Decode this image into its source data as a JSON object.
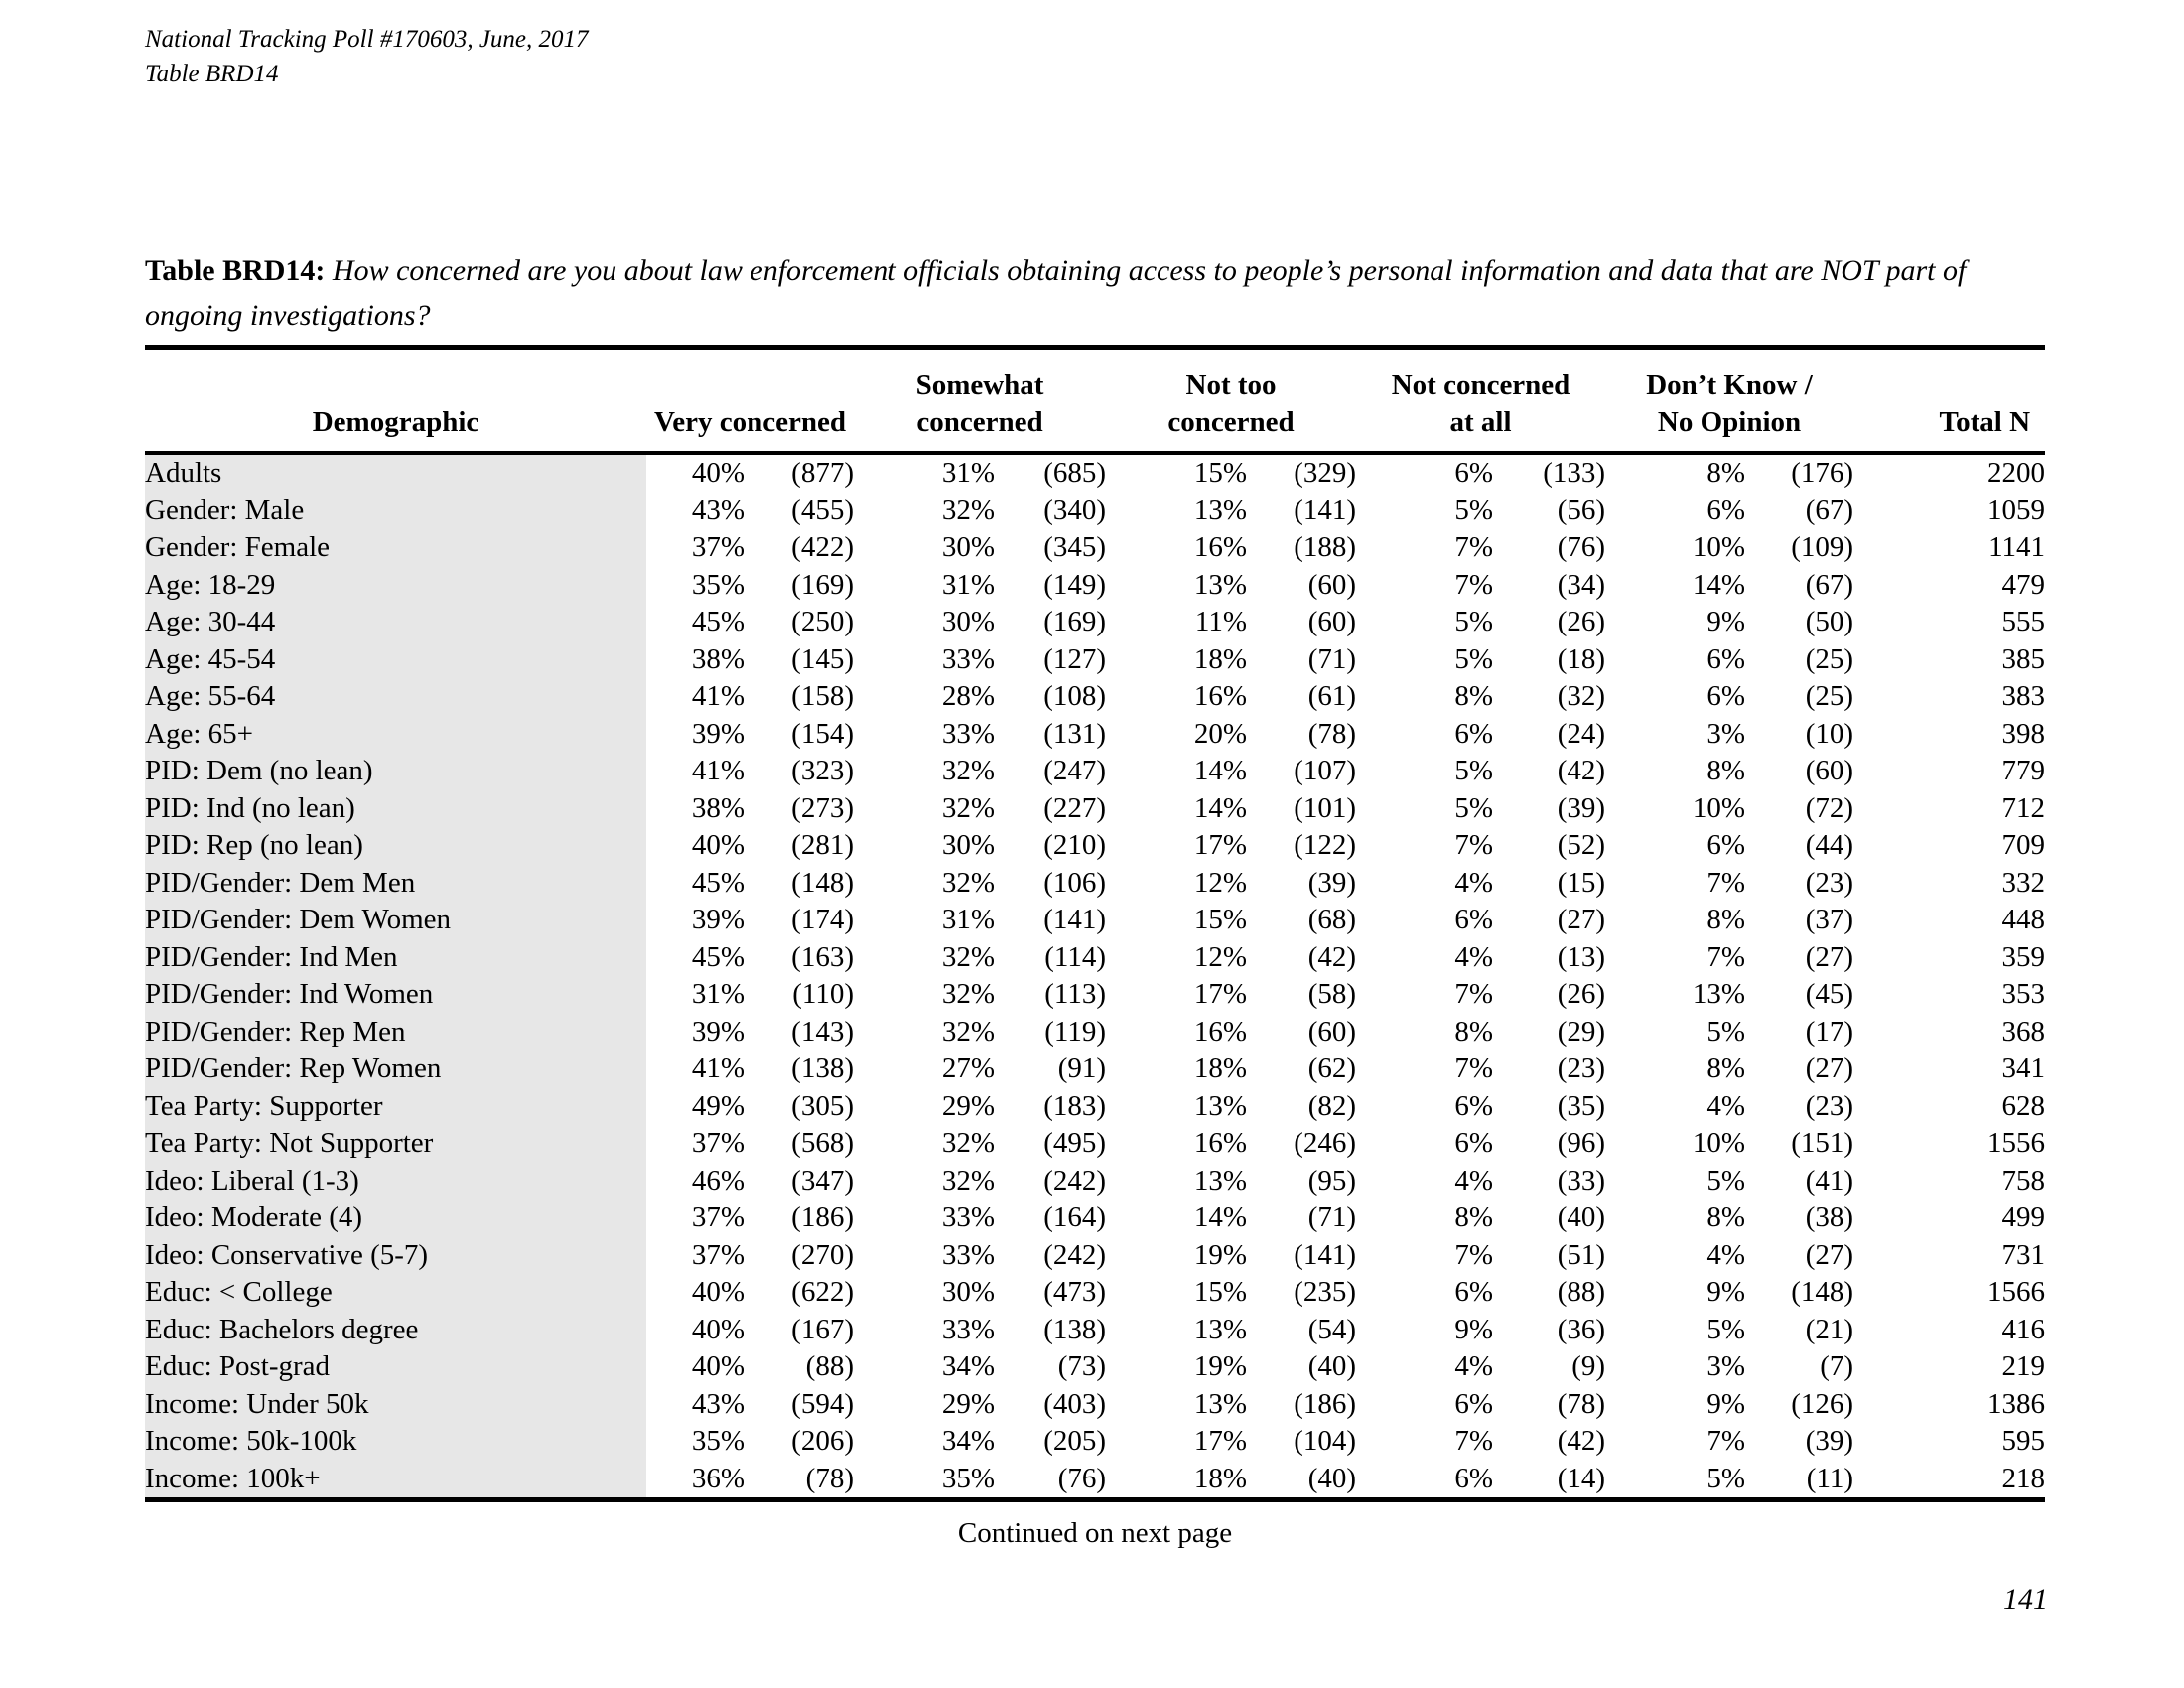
{
  "header": {
    "line1": "National Tracking Poll #170603, June, 2017",
    "line2": "Table BRD14"
  },
  "title": {
    "label": "Table BRD14:",
    "question": "How concerned are you about law enforcement officials obtaining access to people’s personal information and data that are NOT part of ongoing investigations?"
  },
  "colors": {
    "demographic_shade": "#e7e7e7",
    "text": "#000000"
  },
  "columns": {
    "demographic": "Demographic",
    "groups": [
      {
        "line1": "",
        "line2": "Very concerned"
      },
      {
        "line1": "Somewhat",
        "line2": "concerned"
      },
      {
        "line1": "Not too",
        "line2": "concerned"
      },
      {
        "line1": "Not concerned",
        "line2": "at all"
      },
      {
        "line1": "Don’t Know /",
        "line2": "No Opinion"
      }
    ],
    "total": "Total N"
  },
  "rows": [
    {
      "demographic": "Adults",
      "values": [
        "40%",
        "(877)",
        "31%",
        "(685)",
        "15%",
        "(329)",
        "6%",
        "(133)",
        "8%",
        "(176)"
      ],
      "total": "2200"
    },
    {
      "demographic": "Gender: Male",
      "values": [
        "43%",
        "(455)",
        "32%",
        "(340)",
        "13%",
        "(141)",
        "5%",
        "(56)",
        "6%",
        "(67)"
      ],
      "total": "1059"
    },
    {
      "demographic": "Gender: Female",
      "values": [
        "37%",
        "(422)",
        "30%",
        "(345)",
        "16%",
        "(188)",
        "7%",
        "(76)",
        "10%",
        "(109)"
      ],
      "total": "1141"
    },
    {
      "demographic": "Age: 18-29",
      "values": [
        "35%",
        "(169)",
        "31%",
        "(149)",
        "13%",
        "(60)",
        "7%",
        "(34)",
        "14%",
        "(67)"
      ],
      "total": "479"
    },
    {
      "demographic": "Age: 30-44",
      "values": [
        "45%",
        "(250)",
        "30%",
        "(169)",
        "11%",
        "(60)",
        "5%",
        "(26)",
        "9%",
        "(50)"
      ],
      "total": "555"
    },
    {
      "demographic": "Age: 45-54",
      "values": [
        "38%",
        "(145)",
        "33%",
        "(127)",
        "18%",
        "(71)",
        "5%",
        "(18)",
        "6%",
        "(25)"
      ],
      "total": "385"
    },
    {
      "demographic": "Age: 55-64",
      "values": [
        "41%",
        "(158)",
        "28%",
        "(108)",
        "16%",
        "(61)",
        "8%",
        "(32)",
        "6%",
        "(25)"
      ],
      "total": "383"
    },
    {
      "demographic": "Age: 65+",
      "values": [
        "39%",
        "(154)",
        "33%",
        "(131)",
        "20%",
        "(78)",
        "6%",
        "(24)",
        "3%",
        "(10)"
      ],
      "total": "398"
    },
    {
      "demographic": "PID: Dem (no lean)",
      "values": [
        "41%",
        "(323)",
        "32%",
        "(247)",
        "14%",
        "(107)",
        "5%",
        "(42)",
        "8%",
        "(60)"
      ],
      "total": "779"
    },
    {
      "demographic": "PID: Ind (no lean)",
      "values": [
        "38%",
        "(273)",
        "32%",
        "(227)",
        "14%",
        "(101)",
        "5%",
        "(39)",
        "10%",
        "(72)"
      ],
      "total": "712"
    },
    {
      "demographic": "PID: Rep (no lean)",
      "values": [
        "40%",
        "(281)",
        "30%",
        "(210)",
        "17%",
        "(122)",
        "7%",
        "(52)",
        "6%",
        "(44)"
      ],
      "total": "709"
    },
    {
      "demographic": "PID/Gender: Dem Men",
      "values": [
        "45%",
        "(148)",
        "32%",
        "(106)",
        "12%",
        "(39)",
        "4%",
        "(15)",
        "7%",
        "(23)"
      ],
      "total": "332"
    },
    {
      "demographic": "PID/Gender: Dem Women",
      "values": [
        "39%",
        "(174)",
        "31%",
        "(141)",
        "15%",
        "(68)",
        "6%",
        "(27)",
        "8%",
        "(37)"
      ],
      "total": "448"
    },
    {
      "demographic": "PID/Gender: Ind Men",
      "values": [
        "45%",
        "(163)",
        "32%",
        "(114)",
        "12%",
        "(42)",
        "4%",
        "(13)",
        "7%",
        "(27)"
      ],
      "total": "359"
    },
    {
      "demographic": "PID/Gender: Ind Women",
      "values": [
        "31%",
        "(110)",
        "32%",
        "(113)",
        "17%",
        "(58)",
        "7%",
        "(26)",
        "13%",
        "(45)"
      ],
      "total": "353"
    },
    {
      "demographic": "PID/Gender: Rep Men",
      "values": [
        "39%",
        "(143)",
        "32%",
        "(119)",
        "16%",
        "(60)",
        "8%",
        "(29)",
        "5%",
        "(17)"
      ],
      "total": "368"
    },
    {
      "demographic": "PID/Gender: Rep Women",
      "values": [
        "41%",
        "(138)",
        "27%",
        "(91)",
        "18%",
        "(62)",
        "7%",
        "(23)",
        "8%",
        "(27)"
      ],
      "total": "341"
    },
    {
      "demographic": "Tea Party: Supporter",
      "values": [
        "49%",
        "(305)",
        "29%",
        "(183)",
        "13%",
        "(82)",
        "6%",
        "(35)",
        "4%",
        "(23)"
      ],
      "total": "628"
    },
    {
      "demographic": "Tea Party: Not Supporter",
      "values": [
        "37%",
        "(568)",
        "32%",
        "(495)",
        "16%",
        "(246)",
        "6%",
        "(96)",
        "10%",
        "(151)"
      ],
      "total": "1556"
    },
    {
      "demographic": "Ideo: Liberal (1-3)",
      "values": [
        "46%",
        "(347)",
        "32%",
        "(242)",
        "13%",
        "(95)",
        "4%",
        "(33)",
        "5%",
        "(41)"
      ],
      "total": "758"
    },
    {
      "demographic": "Ideo: Moderate (4)",
      "values": [
        "37%",
        "(186)",
        "33%",
        "(164)",
        "14%",
        "(71)",
        "8%",
        "(40)",
        "8%",
        "(38)"
      ],
      "total": "499"
    },
    {
      "demographic": "Ideo: Conservative (5-7)",
      "values": [
        "37%",
        "(270)",
        "33%",
        "(242)",
        "19%",
        "(141)",
        "7%",
        "(51)",
        "4%",
        "(27)"
      ],
      "total": "731"
    },
    {
      "demographic": "Educ: < College",
      "values": [
        "40%",
        "(622)",
        "30%",
        "(473)",
        "15%",
        "(235)",
        "6%",
        "(88)",
        "9%",
        "(148)"
      ],
      "total": "1566"
    },
    {
      "demographic": "Educ: Bachelors degree",
      "values": [
        "40%",
        "(167)",
        "33%",
        "(138)",
        "13%",
        "(54)",
        "9%",
        "(36)",
        "5%",
        "(21)"
      ],
      "total": "416"
    },
    {
      "demographic": "Educ: Post-grad",
      "values": [
        "40%",
        "(88)",
        "34%",
        "(73)",
        "19%",
        "(40)",
        "4%",
        "(9)",
        "3%",
        "(7)"
      ],
      "total": "219"
    },
    {
      "demographic": "Income: Under 50k",
      "values": [
        "43%",
        "(594)",
        "29%",
        "(403)",
        "13%",
        "(186)",
        "6%",
        "(78)",
        "9%",
        "(126)"
      ],
      "total": "1386"
    },
    {
      "demographic": "Income: 50k-100k",
      "values": [
        "35%",
        "(206)",
        "34%",
        "(205)",
        "17%",
        "(104)",
        "7%",
        "(42)",
        "7%",
        "(39)"
      ],
      "total": "595"
    },
    {
      "demographic": "Income: 100k+",
      "values": [
        "36%",
        "(78)",
        "35%",
        "(76)",
        "18%",
        "(40)",
        "6%",
        "(14)",
        "5%",
        "(11)"
      ],
      "total": "218"
    }
  ],
  "footer": {
    "continued": "Continued on next page",
    "page_number": "141"
  }
}
